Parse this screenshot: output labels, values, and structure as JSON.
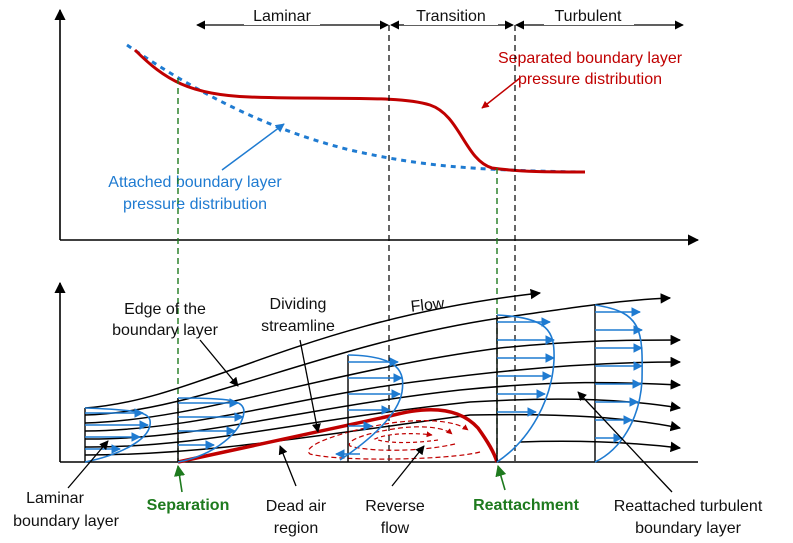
{
  "colors": {
    "axis": "#000000",
    "separated_curve": "#c00000",
    "attached_curve": "#1f7bd1",
    "marker_green": "#1e7a1e",
    "streamline": "#000000",
    "velocity_profile": "#1f7bd1"
  },
  "regions": {
    "laminar": "Laminar",
    "transition": "Transition",
    "turbulent": "Turbulent"
  },
  "top_plot": {
    "separated_label_line1": "Separated boundary layer",
    "separated_label_line2": "pressure distribution",
    "attached_label_line1": "Attached boundary layer",
    "attached_label_line2": "pressure distribution"
  },
  "bottom_plot": {
    "flow": "Flow",
    "edge_line1": "Edge of the",
    "edge_line2": "boundary layer",
    "dividing_line1": "Dividing",
    "dividing_line2": "streamline",
    "laminar_bl_line1": "Laminar",
    "laminar_bl_line2": "boundary layer",
    "separation": "Separation",
    "dead_air_line1": "Dead air",
    "dead_air_line2": "region",
    "reverse_line1": "Reverse",
    "reverse_line2": "flow",
    "reattachment": "Reattachment",
    "reattached_line1": "Reattached turbulent",
    "reattached_line2": "boundary layer"
  }
}
